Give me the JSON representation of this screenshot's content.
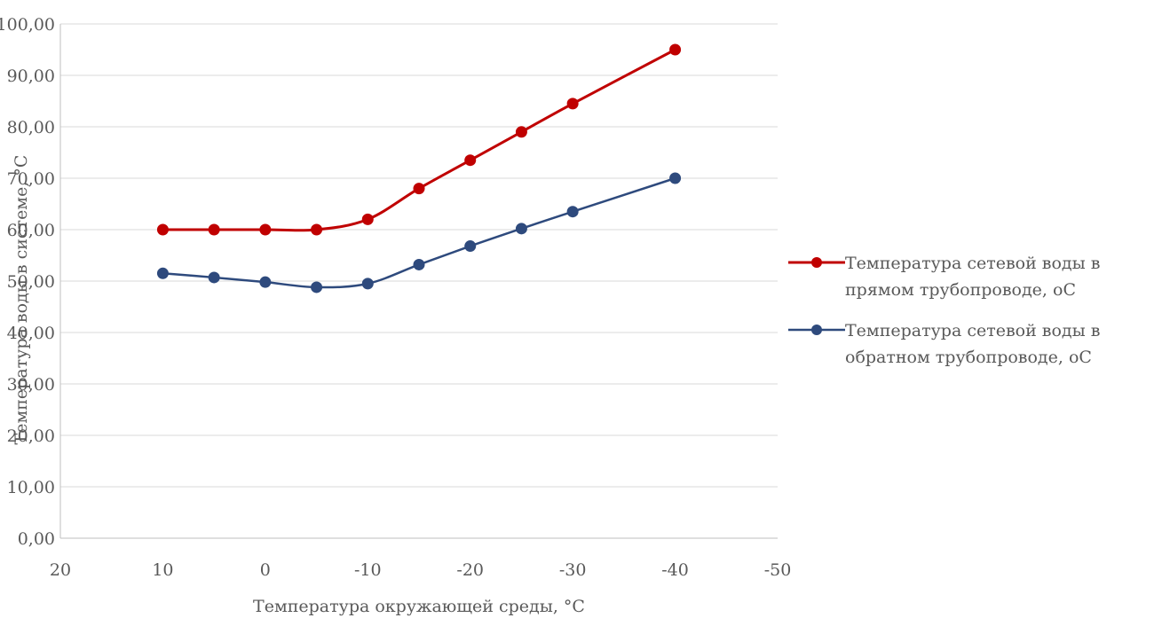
{
  "chart_data": {
    "type": "line",
    "xlabel": "Температура окружающей среды, °С",
    "ylabel": "Температура воды в системе, °С",
    "xlim": [
      20,
      -50
    ],
    "ylim": [
      0,
      100
    ],
    "x_ticks": [
      20,
      10,
      0,
      -10,
      -20,
      -30,
      -40,
      -50
    ],
    "x_tick_labels": [
      "20",
      "10",
      "0",
      "-10",
      "-20",
      "-30",
      "-40",
      "-50"
    ],
    "y_ticks": [
      0,
      10,
      20,
      30,
      40,
      50,
      60,
      70,
      80,
      90,
      100
    ],
    "y_tick_labels": [
      "0,00",
      "10,00",
      "20,00",
      "30,00",
      "40,00",
      "50,00",
      "60,00",
      "70,00",
      "80,00",
      "90,00",
      "100,00"
    ],
    "grid": "horizontal",
    "legend_position": "right",
    "x": [
      10,
      5,
      0,
      -5,
      -10,
      -15,
      -20,
      -25,
      -30,
      -40
    ],
    "series": [
      {
        "name": "Температура сетевой воды в\nпрямом трубопроводе, оС",
        "color": "#c00000",
        "values": [
          60,
          60,
          60,
          60,
          62,
          68,
          73.5,
          79,
          84.5,
          95
        ]
      },
      {
        "name": "Температура сетевой воды в\nобратном трубопроводе, оС",
        "color": "#2e4a7d",
        "values": [
          51.5,
          50.7,
          49.8,
          48.8,
          49.5,
          53.2,
          56.8,
          60.2,
          63.5,
          70
        ]
      }
    ]
  }
}
